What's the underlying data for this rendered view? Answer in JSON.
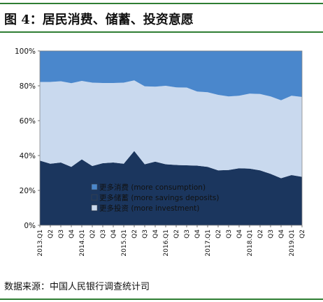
{
  "figure_title": "图 4：居民消费、储蓄、投资意愿",
  "source": "数据来源：中国人民银行调查统计司",
  "colors": {
    "consumption": "#4a87cc",
    "savings": "#1b365e",
    "investment": "#c9d9ee",
    "rule": "#2e7d32"
  },
  "chart_data": {
    "type": "area",
    "stacked": true,
    "title": "",
    "xlabel": "",
    "ylabel": "",
    "ylim": [
      0,
      100
    ],
    "y_ticks": [
      "0%",
      "20%",
      "40%",
      "60%",
      "80%",
      "100%"
    ],
    "x": [
      "2013.Q1",
      "Q2",
      "Q3",
      "Q4",
      "2014.Q1",
      "Q2",
      "Q3",
      "Q4",
      "2015.Q1",
      "Q2",
      "Q3",
      "Q4",
      "2016.Q1",
      "Q2",
      "Q3",
      "Q4",
      "2017.Q1",
      "Q2",
      "Q3",
      "Q4",
      "2018.Q1",
      "Q2",
      "Q3",
      "Q4",
      "2019.Q1",
      "Q2"
    ],
    "legend_position": "bottom-left inside",
    "series": [
      {
        "name": "更多储蓄 (more savings deposits)",
        "key": "savings",
        "values": [
          37.1,
          35.3,
          36.0,
          33.5,
          37.8,
          34.0,
          35.6,
          36.0,
          35.3,
          42.6,
          35.0,
          36.5,
          35.0,
          34.6,
          34.4,
          34.2,
          33.5,
          31.5,
          31.7,
          32.7,
          32.5,
          31.5,
          29.5,
          27.0,
          28.8,
          27.8
        ]
      },
      {
        "name": "更多投资 (more investment)",
        "key": "investment",
        "values": [
          45.1,
          46.9,
          46.6,
          48.0,
          45.0,
          47.8,
          46.0,
          45.6,
          46.5,
          40.5,
          44.7,
          43.0,
          45.0,
          44.5,
          44.6,
          42.5,
          42.8,
          43.3,
          42.2,
          41.6,
          43.0,
          43.8,
          44.4,
          44.7,
          45.5,
          45.8
        ]
      },
      {
        "name": "更多消费 (more consumption)",
        "key": "consumption",
        "values": [
          17.8,
          17.8,
          17.4,
          18.5,
          17.2,
          18.2,
          18.4,
          18.4,
          18.2,
          16.9,
          20.3,
          20.5,
          20.0,
          20.9,
          21.0,
          23.3,
          23.7,
          25.2,
          26.1,
          25.7,
          24.5,
          24.7,
          26.1,
          28.3,
          25.7,
          26.4
        ]
      }
    ],
    "legend": [
      {
        "label": "更多消费 (more consumption)",
        "key": "consumption"
      },
      {
        "label": "更多储蓄 (more savings deposits)",
        "key": "savings"
      },
      {
        "label": "更多投资 (more investment)",
        "key": "investment"
      }
    ]
  }
}
